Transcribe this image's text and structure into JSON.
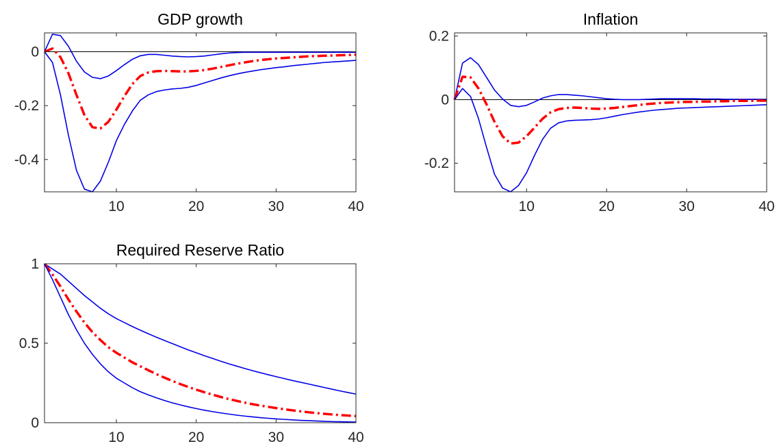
{
  "chart_data": [
    {
      "type": "line",
      "title": "GDP growth",
      "xlim": [
        1,
        40
      ],
      "ylim": [
        -0.52,
        0.07
      ],
      "xticks": [
        10,
        20,
        30,
        40
      ],
      "xtick_labels": [
        "10",
        "20",
        "30",
        "40"
      ],
      "yticks": [
        -0.4,
        -0.2,
        0
      ],
      "ytick_labels": [
        "-0.4",
        "-0.2",
        "0"
      ],
      "zero_line": true,
      "grid": false,
      "colors": {
        "median": "#ff0000",
        "bands": "#0000e6"
      },
      "x": [
        1,
        2,
        3,
        4,
        5,
        6,
        7,
        8,
        9,
        10,
        11,
        12,
        13,
        14,
        15,
        16,
        17,
        18,
        19,
        20,
        21,
        22,
        23,
        24,
        25,
        26,
        27,
        28,
        29,
        30,
        31,
        32,
        33,
        34,
        35,
        36,
        37,
        38,
        39,
        40
      ],
      "series": [
        {
          "role": "upper",
          "style": "solid",
          "values": [
            0,
            0.065,
            0.06,
            0.02,
            -0.035,
            -0.075,
            -0.095,
            -0.1,
            -0.09,
            -0.07,
            -0.048,
            -0.028,
            -0.015,
            -0.01,
            -0.01,
            -0.013,
            -0.016,
            -0.018,
            -0.019,
            -0.018,
            -0.016,
            -0.012,
            -0.008,
            -0.005,
            -0.003,
            -0.002,
            -0.002,
            -0.002,
            -0.002,
            -0.002,
            -0.002,
            -0.002,
            -0.002,
            -0.002,
            -0.002,
            -0.002,
            -0.002,
            -0.002,
            -0.002,
            -0.002
          ]
        },
        {
          "role": "median",
          "style": "dashdot",
          "values": [
            0,
            0.012,
            -0.02,
            -0.08,
            -0.16,
            -0.235,
            -0.28,
            -0.285,
            -0.26,
            -0.215,
            -0.165,
            -0.12,
            -0.09,
            -0.077,
            -0.072,
            -0.071,
            -0.072,
            -0.073,
            -0.073,
            -0.071,
            -0.068,
            -0.063,
            -0.057,
            -0.051,
            -0.045,
            -0.04,
            -0.035,
            -0.031,
            -0.028,
            -0.025,
            -0.023,
            -0.021,
            -0.019,
            -0.017,
            -0.016,
            -0.015,
            -0.014,
            -0.013,
            -0.012,
            -0.011
          ]
        },
        {
          "role": "lower",
          "style": "solid",
          "values": [
            0,
            -0.04,
            -0.16,
            -0.31,
            -0.44,
            -0.51,
            -0.52,
            -0.48,
            -0.41,
            -0.33,
            -0.27,
            -0.22,
            -0.18,
            -0.16,
            -0.148,
            -0.142,
            -0.138,
            -0.136,
            -0.132,
            -0.125,
            -0.116,
            -0.107,
            -0.098,
            -0.09,
            -0.083,
            -0.077,
            -0.072,
            -0.067,
            -0.063,
            -0.059,
            -0.056,
            -0.052,
            -0.049,
            -0.046,
            -0.043,
            -0.04,
            -0.038,
            -0.036,
            -0.034,
            -0.032
          ]
        }
      ]
    },
    {
      "type": "line",
      "title": "Inflation",
      "xlim": [
        1,
        40
      ],
      "ylim": [
        -0.29,
        0.21
      ],
      "xticks": [
        10,
        20,
        30,
        40
      ],
      "xtick_labels": [
        "10",
        "20",
        "30",
        "40"
      ],
      "yticks": [
        -0.2,
        0,
        0.2
      ],
      "ytick_labels": [
        "-0.2",
        "0",
        "0.2"
      ],
      "zero_line": true,
      "grid": false,
      "colors": {
        "median": "#ff0000",
        "bands": "#0000e6"
      },
      "x": [
        1,
        2,
        3,
        4,
        5,
        6,
        7,
        8,
        9,
        10,
        11,
        12,
        13,
        14,
        15,
        16,
        17,
        18,
        19,
        20,
        21,
        22,
        23,
        24,
        25,
        26,
        27,
        28,
        29,
        30,
        31,
        32,
        33,
        34,
        35,
        36,
        37,
        38,
        39,
        40
      ],
      "series": [
        {
          "role": "upper",
          "style": "solid",
          "values": [
            0,
            0.115,
            0.132,
            0.11,
            0.07,
            0.03,
            0.002,
            -0.018,
            -0.022,
            -0.018,
            -0.007,
            0.005,
            0.012,
            0.016,
            0.016,
            0.014,
            0.012,
            0.009,
            0.006,
            0.003,
            0.001,
            0,
            0,
            0,
            0.001,
            0.002,
            0.003,
            0.003,
            0.003,
            0.003,
            0.003,
            0.002,
            0.002,
            0.002,
            0.001,
            0.001,
            0.001,
            0.001,
            0.001,
            0.001
          ]
        },
        {
          "role": "median",
          "style": "dashdot",
          "values": [
            0,
            0.072,
            0.07,
            0.035,
            -0.015,
            -0.07,
            -0.115,
            -0.138,
            -0.135,
            -0.115,
            -0.088,
            -0.06,
            -0.04,
            -0.03,
            -0.026,
            -0.025,
            -0.026,
            -0.028,
            -0.029,
            -0.028,
            -0.026,
            -0.023,
            -0.02,
            -0.017,
            -0.014,
            -0.012,
            -0.01,
            -0.009,
            -0.008,
            -0.007,
            -0.007,
            -0.006,
            -0.006,
            -0.005,
            -0.005,
            -0.004,
            -0.004,
            -0.004,
            -0.003,
            -0.003
          ]
        },
        {
          "role": "lower",
          "style": "solid",
          "values": [
            0,
            0.035,
            0.01,
            -0.06,
            -0.15,
            -0.235,
            -0.278,
            -0.29,
            -0.27,
            -0.23,
            -0.175,
            -0.125,
            -0.09,
            -0.073,
            -0.067,
            -0.065,
            -0.064,
            -0.063,
            -0.061,
            -0.057,
            -0.052,
            -0.047,
            -0.043,
            -0.039,
            -0.036,
            -0.033,
            -0.031,
            -0.029,
            -0.027,
            -0.026,
            -0.025,
            -0.024,
            -0.023,
            -0.022,
            -0.021,
            -0.02,
            -0.019,
            -0.018,
            -0.017,
            -0.016
          ]
        }
      ]
    },
    {
      "type": "line",
      "title": "Required Reserve Ratio",
      "xlim": [
        1,
        40
      ],
      "ylim": [
        0,
        1
      ],
      "xticks": [
        10,
        20,
        30,
        40
      ],
      "xtick_labels": [
        "10",
        "20",
        "30",
        "40"
      ],
      "yticks": [
        0,
        0.5,
        1
      ],
      "ytick_labels": [
        "0",
        "0.5",
        "1"
      ],
      "zero_line": false,
      "grid": false,
      "colors": {
        "median": "#ff0000",
        "bands": "#0000e6"
      },
      "x": [
        1,
        2,
        3,
        4,
        5,
        6,
        7,
        8,
        9,
        10,
        11,
        12,
        13,
        14,
        15,
        16,
        17,
        18,
        19,
        20,
        21,
        22,
        23,
        24,
        25,
        26,
        27,
        28,
        29,
        30,
        31,
        32,
        33,
        34,
        35,
        36,
        37,
        38,
        39,
        40
      ],
      "series": [
        {
          "role": "upper",
          "style": "solid",
          "values": [
            1,
            0.967,
            0.935,
            0.89,
            0.845,
            0.8,
            0.76,
            0.72,
            0.685,
            0.655,
            0.63,
            0.605,
            0.582,
            0.56,
            0.538,
            0.518,
            0.498,
            0.478,
            0.458,
            0.44,
            0.422,
            0.405,
            0.388,
            0.372,
            0.357,
            0.342,
            0.328,
            0.315,
            0.302,
            0.29,
            0.278,
            0.266,
            0.255,
            0.244,
            0.233,
            0.222,
            0.211,
            0.2,
            0.19,
            0.18
          ]
        },
        {
          "role": "median",
          "style": "dashdot",
          "values": [
            1,
            0.933,
            0.857,
            0.775,
            0.7,
            0.63,
            0.57,
            0.52,
            0.475,
            0.44,
            0.41,
            0.38,
            0.355,
            0.33,
            0.306,
            0.284,
            0.263,
            0.243,
            0.225,
            0.208,
            0.192,
            0.177,
            0.163,
            0.15,
            0.138,
            0.127,
            0.117,
            0.108,
            0.1,
            0.092,
            0.085,
            0.078,
            0.072,
            0.066,
            0.061,
            0.056,
            0.052,
            0.048,
            0.045,
            0.042
          ]
        },
        {
          "role": "lower",
          "style": "solid",
          "values": [
            1,
            0.9,
            0.79,
            0.68,
            0.585,
            0.5,
            0.43,
            0.37,
            0.32,
            0.28,
            0.25,
            0.22,
            0.195,
            0.175,
            0.157,
            0.14,
            0.125,
            0.112,
            0.1,
            0.089,
            0.079,
            0.07,
            0.062,
            0.055,
            0.048,
            0.042,
            0.037,
            0.032,
            0.028,
            0.024,
            0.021,
            0.018,
            0.015,
            0.013,
            0.011,
            0.009,
            0.007,
            0.006,
            0.005,
            0.004
          ]
        }
      ]
    }
  ]
}
